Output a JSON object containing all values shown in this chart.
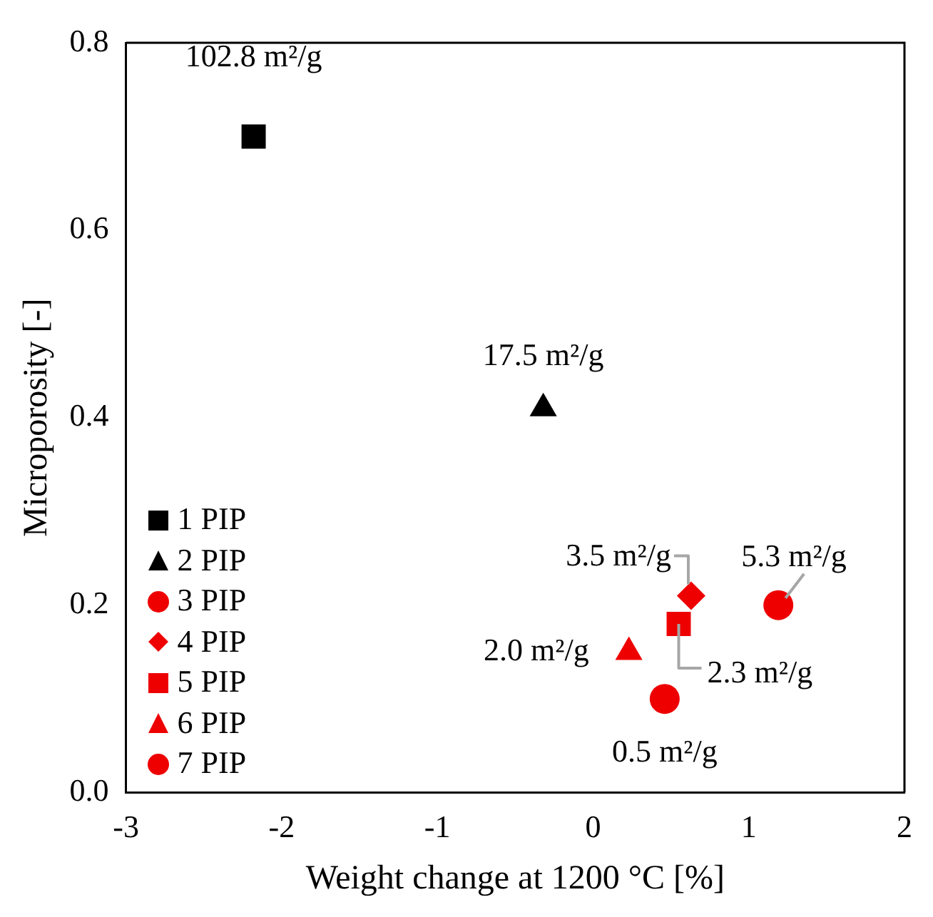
{
  "chart_data": {
    "type": "scatter",
    "xlabel": "Weight change at 1200 °C [%]",
    "ylabel": "Microporosity [-]",
    "xlim": [
      -3,
      2
    ],
    "xticks": [
      -3,
      -2,
      -1,
      0,
      1,
      2
    ],
    "ylim": [
      0,
      0.8
    ],
    "yticks": [
      {
        "value": 0,
        "label": "0.0"
      },
      0.2,
      0.4,
      0.6,
      0.8
    ],
    "grid": false,
    "legend": "bottom left",
    "series": [
      {
        "name": "1 PIP",
        "color": "#000000",
        "marker": "square",
        "x": [
          -2.18
        ],
        "values": [
          0.7
        ]
      },
      {
        "name": "2 PIP",
        "color": "#000000",
        "marker": "triangle",
        "x": [
          -0.32
        ],
        "values": [
          0.41
        ]
      },
      {
        "name": "3 PIP",
        "color": "#ee0000",
        "marker": "circle",
        "x": [
          1.19
        ],
        "values": [
          0.2
        ]
      },
      {
        "name": "4 PIP",
        "color": "#ee0000",
        "marker": "diamond",
        "x": [
          0.63
        ],
        "values": [
          0.21
        ]
      },
      {
        "name": "5 PIP",
        "color": "#ee0000",
        "marker": "square",
        "x": [
          0.55
        ],
        "values": [
          0.18
        ]
      },
      {
        "name": "6 PIP",
        "color": "#ee0000",
        "marker": "triangle",
        "x": [
          0.23
        ],
        "values": [
          0.15
        ]
      },
      {
        "name": "7 PIP",
        "color": "#ee0000",
        "marker": "circle",
        "x": [
          0.46
        ],
        "values": [
          0.1
        ]
      }
    ],
    "annotations": [
      {
        "text": "102.8 m²/g",
        "x": -2.18,
        "y": 0.7
      },
      {
        "text": "17.5 m²/g",
        "x": -0.32,
        "y": 0.41
      },
      {
        "text": "5.3 m²/g",
        "x": 1.19,
        "y": 0.2
      },
      {
        "text": "3.5 m²/g",
        "x": 0.63,
        "y": 0.21
      },
      {
        "text": "2.3 m²/g",
        "x": 0.55,
        "y": 0.18
      },
      {
        "text": "2.0 m²/g",
        "x": 0.23,
        "y": 0.15
      },
      {
        "text": "0.5 m²/g",
        "x": 0.46,
        "y": 0.1
      }
    ]
  }
}
